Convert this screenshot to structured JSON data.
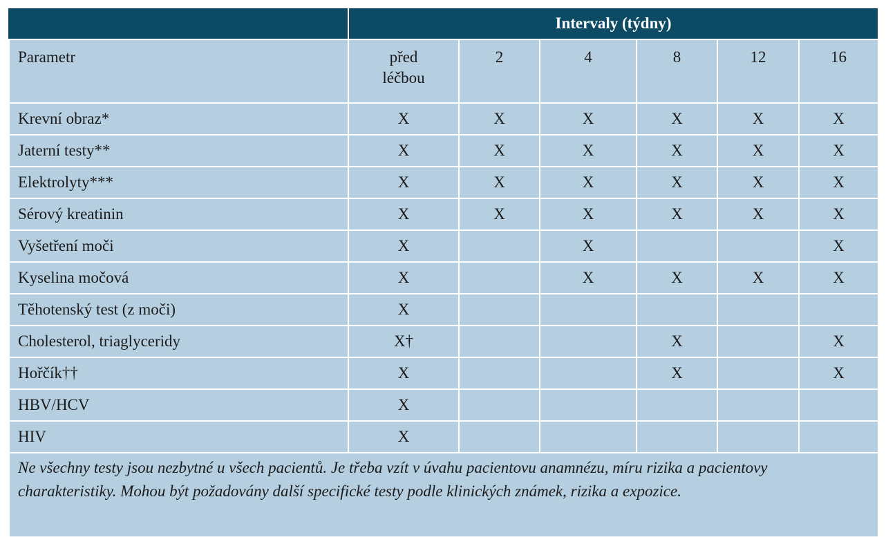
{
  "table": {
    "group_header": "Intervaly (týdny)",
    "columns": [
      "Parametr",
      "před\nléčbou",
      "2",
      "4",
      "8",
      "12",
      "16"
    ],
    "rows": [
      [
        "Krevní obraz*",
        "X",
        "X",
        "X",
        "X",
        "X",
        "X"
      ],
      [
        "Jaterní testy**",
        "X",
        "X",
        "X",
        "X",
        "X",
        "X"
      ],
      [
        "Elektrolyty***",
        "X",
        "X",
        "X",
        "X",
        "X",
        "X"
      ],
      [
        "Sérový kreatinin",
        "X",
        "X",
        "X",
        "X",
        "X",
        "X"
      ],
      [
        "Vyšetření moči",
        "X",
        null,
        "X",
        null,
        null,
        "X"
      ],
      [
        "Kyselina močová",
        "X",
        null,
        "X",
        "X",
        "X",
        "X"
      ],
      [
        "Těhotenský test (z moči)",
        "X",
        null,
        null,
        null,
        null,
        null
      ],
      [
        "Cholesterol, triaglyceridy",
        "X†",
        null,
        null,
        "X",
        null,
        "X"
      ],
      [
        "Hořčík††",
        "X",
        null,
        null,
        "X",
        null,
        "X"
      ],
      [
        "HBV/HCV",
        "X",
        null,
        null,
        null,
        null,
        null
      ],
      [
        "HIV",
        "X",
        null,
        null,
        null,
        null,
        null
      ]
    ],
    "note": "Ne všechny testy jsou nezbytné u všech pacientů. Je třeba vzít v úvahu pacientovu anamnézu, míru rizika a pacientovy charakteristiky. Mohou být požadovány další specifické testy podle klinických známek, rizika a expozice."
  }
}
